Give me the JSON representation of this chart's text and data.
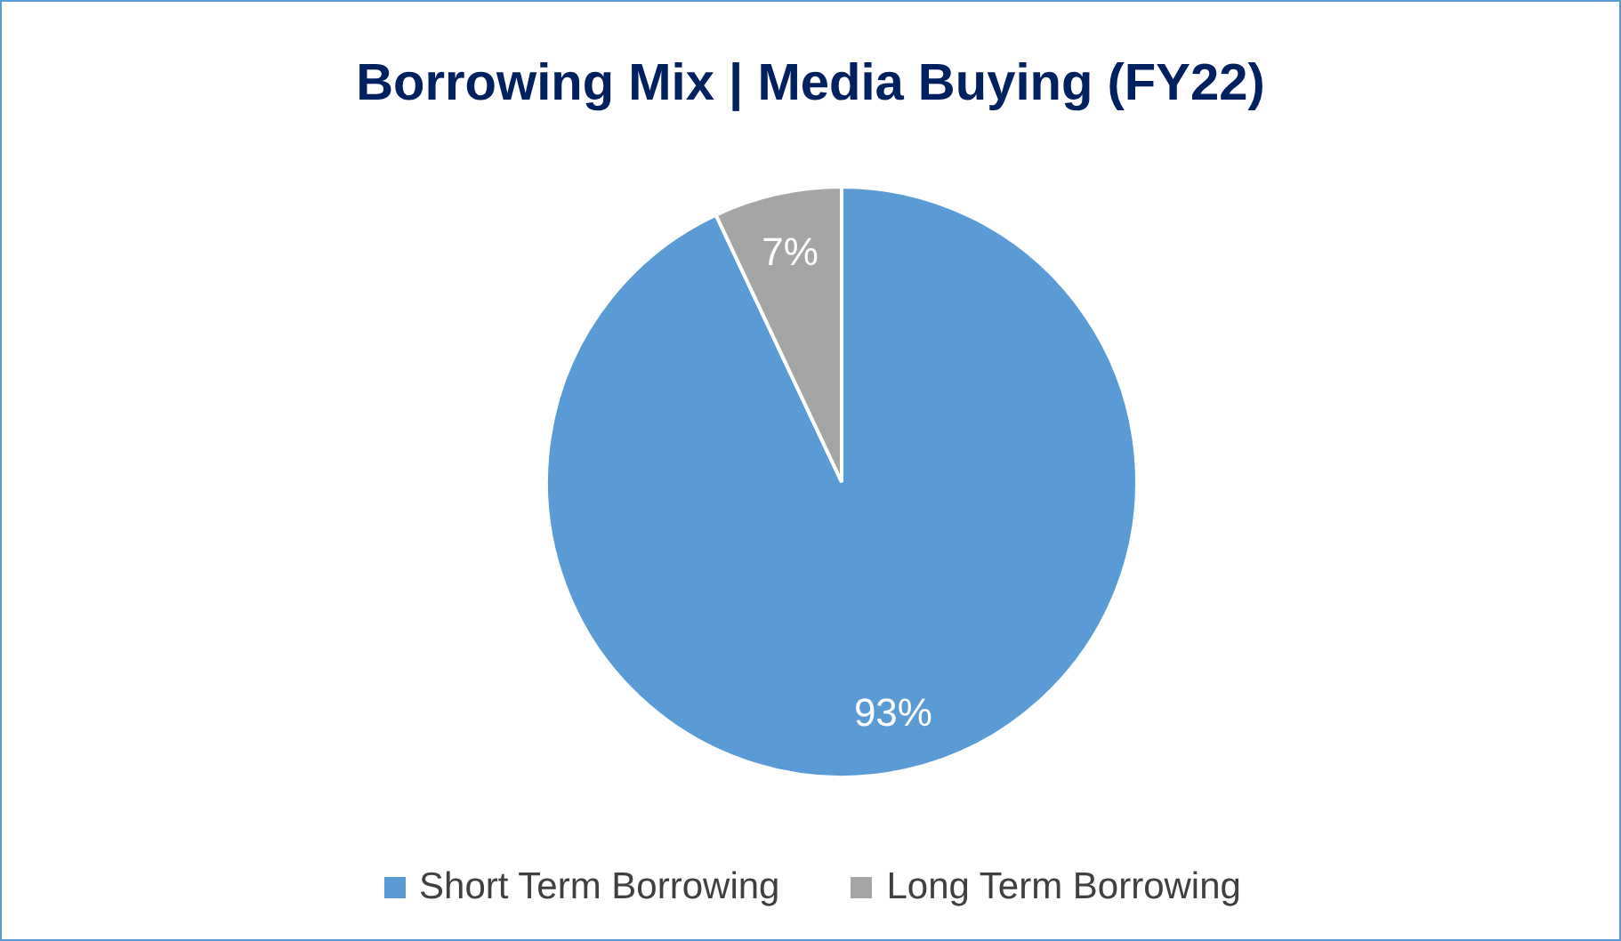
{
  "chart_data": {
    "type": "pie",
    "title": "Borrowing Mix | Media Buying (FY22)",
    "categories": [
      "Short Term Borrowing",
      "Long Term Borrowing"
    ],
    "values": [
      93,
      7
    ],
    "colors": [
      "#5b9bd5",
      "#a5a5a5"
    ],
    "value_labels": [
      "93%",
      "7%"
    ],
    "legend": "bottom"
  }
}
